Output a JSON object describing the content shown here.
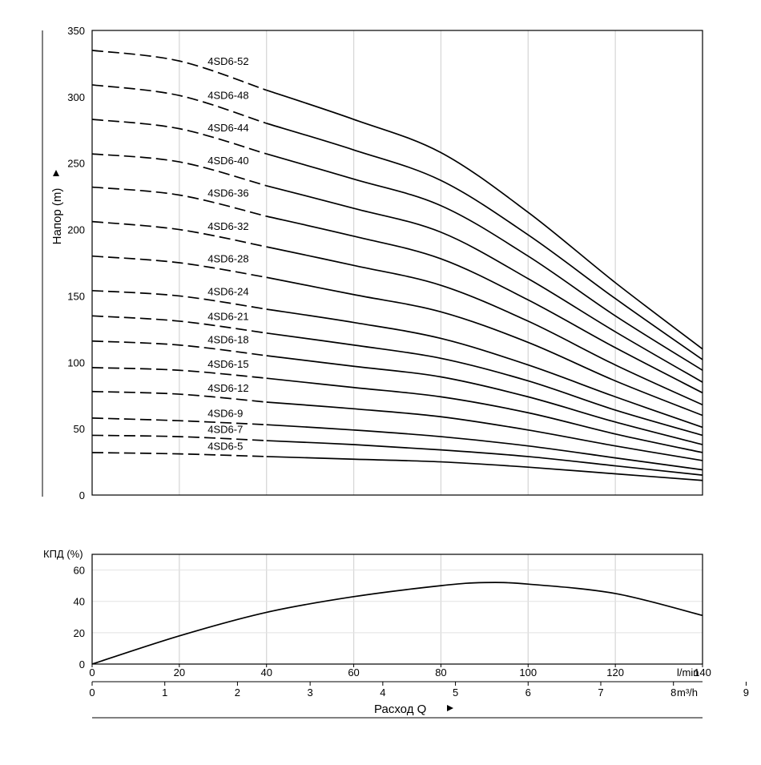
{
  "chart_data": [
    {
      "type": "line",
      "ylabel": "Напор (m)",
      "ylim": [
        0,
        350
      ],
      "xlim": [
        0,
        140
      ],
      "yticks": [
        "0",
        "50",
        "100",
        "150",
        "200",
        "250",
        "300",
        "350"
      ],
      "grid": true,
      "series": [
        {
          "name": "4SD6-52",
          "dashed_until_x": 40,
          "x": [
            0,
            20,
            40,
            60,
            80,
            100,
            120,
            140
          ],
          "y": [
            335,
            327,
            305,
            283,
            258,
            213,
            160,
            110
          ]
        },
        {
          "name": "4SD6-48",
          "dashed_until_x": 40,
          "x": [
            0,
            20,
            40,
            60,
            80,
            100,
            120,
            140
          ],
          "y": [
            309,
            301,
            280,
            260,
            237,
            196,
            148,
            102
          ]
        },
        {
          "name": "4SD6-44",
          "dashed_until_x": 40,
          "x": [
            0,
            20,
            40,
            60,
            80,
            100,
            120,
            140
          ],
          "y": [
            283,
            276,
            257,
            238,
            218,
            180,
            135,
            94
          ]
        },
        {
          "name": "4SD6-40",
          "dashed_until_x": 40,
          "x": [
            0,
            20,
            40,
            60,
            80,
            100,
            120,
            140
          ],
          "y": [
            257,
            251,
            233,
            216,
            198,
            163,
            123,
            85
          ]
        },
        {
          "name": "4SD6-36",
          "dashed_until_x": 40,
          "x": [
            0,
            20,
            40,
            60,
            80,
            100,
            120,
            140
          ],
          "y": [
            232,
            226,
            210,
            195,
            178,
            147,
            111,
            77
          ]
        },
        {
          "name": "4SD6-32",
          "dashed_until_x": 40,
          "x": [
            0,
            20,
            40,
            60,
            80,
            100,
            120,
            140
          ],
          "y": [
            206,
            200,
            187,
            173,
            158,
            131,
            98,
            68
          ]
        },
        {
          "name": "4SD6-28",
          "dashed_until_x": 40,
          "x": [
            0,
            20,
            40,
            60,
            80,
            100,
            120,
            140
          ],
          "y": [
            180,
            175,
            164,
            151,
            138,
            115,
            86,
            60
          ]
        },
        {
          "name": "4SD6-24",
          "dashed_until_x": 40,
          "x": [
            0,
            20,
            40,
            60,
            80,
            100,
            120,
            140
          ],
          "y": [
            154,
            150,
            140,
            130,
            118,
            98,
            74,
            51
          ]
        },
        {
          "name": "4SD6-21",
          "dashed_until_x": 40,
          "x": [
            0,
            20,
            40,
            60,
            80,
            100,
            120,
            140
          ],
          "y": [
            135,
            131,
            122,
            113,
            103,
            86,
            64,
            45
          ]
        },
        {
          "name": "4SD6-18",
          "dashed_until_x": 40,
          "x": [
            0,
            20,
            40,
            60,
            80,
            100,
            120,
            140
          ],
          "y": [
            116,
            113,
            105,
            97,
            89,
            74,
            55,
            38
          ]
        },
        {
          "name": "4SD6-15",
          "dashed_until_x": 40,
          "x": [
            0,
            20,
            40,
            60,
            80,
            100,
            120,
            140
          ],
          "y": [
            96,
            94,
            88,
            81,
            74,
            62,
            46,
            32
          ]
        },
        {
          "name": "4SD6-12",
          "dashed_until_x": 40,
          "x": [
            0,
            20,
            40,
            60,
            80,
            100,
            120,
            140
          ],
          "y": [
            78,
            76,
            70,
            65,
            59,
            49,
            37,
            26
          ]
        },
        {
          "name": "4SD6-9",
          "dashed_until_x": 40,
          "x": [
            0,
            20,
            40,
            60,
            80,
            100,
            120,
            140
          ],
          "y": [
            58,
            56,
            53,
            49,
            44,
            37,
            28,
            19
          ]
        },
        {
          "name": "4SD6-7",
          "dashed_until_x": 40,
          "x": [
            0,
            20,
            40,
            60,
            80,
            100,
            120,
            140
          ],
          "y": [
            45,
            44,
            41,
            38,
            34,
            29,
            22,
            15
          ]
        },
        {
          "name": "4SD6-5",
          "dashed_until_x": 40,
          "x": [
            0,
            20,
            40,
            60,
            80,
            100,
            120,
            140
          ],
          "y": [
            32,
            31,
            29,
            27,
            25,
            21,
            16,
            11
          ]
        }
      ]
    },
    {
      "type": "line",
      "ylabel": "КПД (%)",
      "xlabel": "Расход  Q",
      "ylim": [
        0,
        70
      ],
      "yticks": [
        "0",
        "20",
        "40",
        "60"
      ],
      "xlim": [
        0,
        140
      ],
      "x_lmin_ticks": [
        "0",
        "20",
        "40",
        "60",
        "80",
        "100",
        "120",
        "140"
      ],
      "x_lmin_unit": "l/min",
      "x_m3h_ticks": [
        "0",
        "1",
        "2",
        "3",
        "4",
        "5",
        "6",
        "7",
        "8",
        "9"
      ],
      "x_m3h_unit": "m³/h",
      "grid": true,
      "series": [
        {
          "x": [
            0,
            20,
            40,
            60,
            80,
            90,
            100,
            120,
            140
          ],
          "y": [
            0,
            18,
            33,
            43,
            50,
            52,
            51,
            45,
            31
          ]
        }
      ]
    }
  ]
}
